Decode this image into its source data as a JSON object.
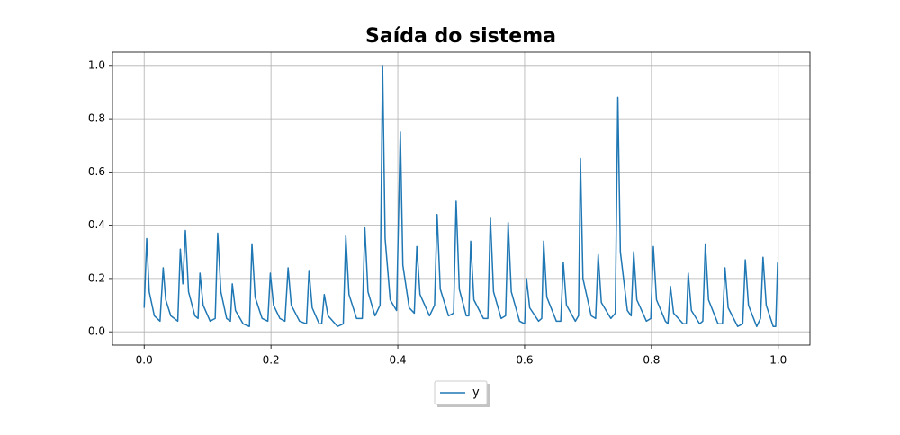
{
  "chart_data": {
    "type": "line",
    "title": "Saída do sistema",
    "x": [
      0.0,
      0.004,
      0.008,
      0.016,
      0.025,
      0.03,
      0.034,
      0.042,
      0.053,
      0.057,
      0.061,
      0.065,
      0.07,
      0.08,
      0.085,
      0.088,
      0.093,
      0.104,
      0.112,
      0.116,
      0.121,
      0.13,
      0.136,
      0.139,
      0.144,
      0.156,
      0.166,
      0.17,
      0.175,
      0.186,
      0.195,
      0.199,
      0.204,
      0.214,
      0.222,
      0.227,
      0.232,
      0.245,
      0.256,
      0.26,
      0.265,
      0.276,
      0.28,
      0.284,
      0.29,
      0.305,
      0.314,
      0.318,
      0.323,
      0.335,
      0.344,
      0.348,
      0.353,
      0.364,
      0.372,
      0.376,
      0.38,
      0.388,
      0.398,
      0.404,
      0.408,
      0.418,
      0.426,
      0.43,
      0.435,
      0.45,
      0.458,
      0.462,
      0.467,
      0.48,
      0.488,
      0.492,
      0.497,
      0.508,
      0.512,
      0.515,
      0.52,
      0.535,
      0.542,
      0.546,
      0.551,
      0.563,
      0.57,
      0.574,
      0.579,
      0.592,
      0.6,
      0.603,
      0.608,
      0.622,
      0.627,
      0.63,
      0.635,
      0.65,
      0.657,
      0.661,
      0.666,
      0.68,
      0.685,
      0.688,
      0.692,
      0.705,
      0.712,
      0.716,
      0.721,
      0.736,
      0.743,
      0.747,
      0.751,
      0.762,
      0.768,
      0.772,
      0.777,
      0.792,
      0.799,
      0.803,
      0.808,
      0.822,
      0.826,
      0.83,
      0.835,
      0.85,
      0.855,
      0.858,
      0.863,
      0.876,
      0.881,
      0.885,
      0.89,
      0.905,
      0.912,
      0.916,
      0.921,
      0.936,
      0.944,
      0.948,
      0.953,
      0.966,
      0.972,
      0.976,
      0.981,
      0.992,
      0.996,
      0.999
    ],
    "series": [
      {
        "name": "y",
        "color": "#1f77b4",
        "values": [
          0.09,
          0.35,
          0.15,
          0.06,
          0.04,
          0.24,
          0.12,
          0.06,
          0.04,
          0.31,
          0.18,
          0.38,
          0.15,
          0.06,
          0.05,
          0.22,
          0.1,
          0.04,
          0.05,
          0.37,
          0.15,
          0.05,
          0.04,
          0.18,
          0.08,
          0.03,
          0.02,
          0.33,
          0.13,
          0.05,
          0.04,
          0.22,
          0.1,
          0.05,
          0.04,
          0.24,
          0.1,
          0.04,
          0.03,
          0.23,
          0.09,
          0.03,
          0.03,
          0.14,
          0.06,
          0.02,
          0.03,
          0.36,
          0.14,
          0.05,
          0.05,
          0.39,
          0.15,
          0.06,
          0.1,
          1.0,
          0.35,
          0.12,
          0.08,
          0.75,
          0.25,
          0.09,
          0.07,
          0.32,
          0.14,
          0.06,
          0.1,
          0.44,
          0.16,
          0.06,
          0.07,
          0.49,
          0.16,
          0.06,
          0.06,
          0.34,
          0.12,
          0.05,
          0.05,
          0.43,
          0.15,
          0.05,
          0.06,
          0.41,
          0.15,
          0.04,
          0.03,
          0.2,
          0.09,
          0.04,
          0.05,
          0.34,
          0.13,
          0.04,
          0.04,
          0.26,
          0.1,
          0.04,
          0.06,
          0.65,
          0.2,
          0.06,
          0.05,
          0.29,
          0.11,
          0.05,
          0.07,
          0.88,
          0.3,
          0.08,
          0.06,
          0.3,
          0.12,
          0.04,
          0.05,
          0.32,
          0.12,
          0.04,
          0.03,
          0.17,
          0.07,
          0.03,
          0.03,
          0.22,
          0.08,
          0.03,
          0.04,
          0.33,
          0.12,
          0.03,
          0.03,
          0.24,
          0.09,
          0.02,
          0.03,
          0.27,
          0.1,
          0.02,
          0.05,
          0.28,
          0.1,
          0.02,
          0.02,
          0.26
        ]
      }
    ],
    "xlim": [
      -0.05,
      1.05
    ],
    "ylim": [
      -0.05,
      1.05
    ],
    "xticks": [
      {
        "value": 0,
        "label": "0.0"
      },
      0.2,
      0.4,
      0.6,
      0.8,
      {
        "value": 1,
        "label": "1.0"
      }
    ],
    "yticks": [
      {
        "value": 0,
        "label": "0.0"
      },
      0.2,
      0.4,
      0.6,
      0.8,
      {
        "value": 1,
        "label": "1.0"
      }
    ],
    "grid": true,
    "legend": "lower center"
  }
}
